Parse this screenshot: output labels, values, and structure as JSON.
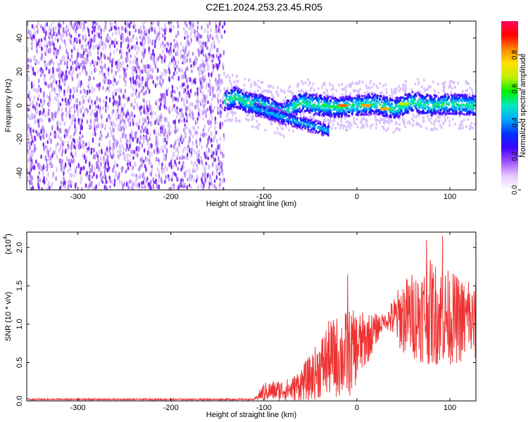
{
  "title": "C2E1.2024.253.23.45.R05",
  "chart_data": [
    {
      "type": "heatmap",
      "title": "C2E1.2024.253.23.45.R05",
      "xlabel": "Height of straight line (km)",
      "ylabel": "Frequency (Hz)",
      "xlim": [
        -355,
        128
      ],
      "ylim": [
        -50,
        50
      ],
      "xticks": [
        -300,
        -200,
        -100,
        0,
        100
      ],
      "yticks": [
        -40,
        -20,
        0,
        20,
        40
      ],
      "colorbar": {
        "label": "Normalized spectral amplitude",
        "range": [
          0,
          1
        ],
        "ticks": [
          "0.0",
          "0.2",
          "0.4",
          "0.6",
          "0.8"
        ],
        "colors": [
          "#ffffff",
          "#e6c8ff",
          "#a050ff",
          "#4000ff",
          "#0030ff",
          "#00aaff",
          "#00e8c0",
          "#00f000",
          "#c0f000",
          "#ffe000",
          "#ff8800",
          "#ff0000",
          "#ff0060"
        ]
      },
      "regions": [
        {
          "name": "noise",
          "x": [
            -355,
            -142
          ],
          "freq_range": [
            -50,
            50
          ],
          "amplitude": 0.05
        },
        {
          "name": "signal_band",
          "x": [
            -142,
            128
          ],
          "center_freq": [
            [
              -142,
              3
            ],
            [
              -130,
              5
            ],
            [
              -120,
              2
            ],
            [
              -100,
              0
            ],
            [
              -80,
              -5
            ],
            [
              -60,
              2
            ],
            [
              -40,
              0
            ],
            [
              -20,
              -1
            ],
            [
              0,
              0
            ],
            [
              20,
              1
            ],
            [
              40,
              -2
            ],
            [
              60,
              2
            ],
            [
              80,
              0
            ],
            [
              100,
              1
            ],
            [
              128,
              0
            ]
          ],
          "half_width_hz": 6
        },
        {
          "name": "branch",
          "x": [
            -110,
            -30
          ],
          "center_freq": [
            [
              -110,
              -2
            ],
            [
              -30,
              -15
            ]
          ],
          "half_width_hz": 4
        }
      ],
      "peaks": [
        {
          "x": -15,
          "freq": 0,
          "amplitude": 1.0
        },
        {
          "x": 10,
          "freq": 0,
          "amplitude": 0.95
        },
        {
          "x": 30,
          "freq": -2,
          "amplitude": 0.95
        },
        {
          "x": 50,
          "freq": 1,
          "amplitude": 0.8
        }
      ]
    },
    {
      "type": "line",
      "xlabel": "Height of straight line (km)",
      "ylabel": "SNR (10 * v/v)",
      "multiplier_label": "(x10",
      "multiplier_exp": "4",
      "xlim": [
        -355,
        128
      ],
      "ylim": [
        0,
        2.2
      ],
      "xticks": [
        -300,
        -200,
        -100,
        0,
        100
      ],
      "yticks": [
        0.0,
        0.5,
        1.0,
        1.5,
        2.0
      ],
      "ytick_labels": [
        "0.0",
        "0.5",
        "1.0",
        "1.5",
        "2.0"
      ],
      "color": "#ee3333",
      "envelope": [
        {
          "x": -355,
          "mean": 0.02,
          "spread": 0.01
        },
        {
          "x": -110,
          "mean": 0.02,
          "spread": 0.01
        },
        {
          "x": -100,
          "mean": 0.12,
          "spread": 0.12
        },
        {
          "x": -70,
          "mean": 0.15,
          "spread": 0.15
        },
        {
          "x": -50,
          "mean": 0.3,
          "spread": 0.3
        },
        {
          "x": -30,
          "mean": 0.55,
          "spread": 0.5
        },
        {
          "x": -10,
          "mean": 0.6,
          "spread": 0.6
        },
        {
          "x": 10,
          "mean": 0.8,
          "spread": 0.35
        },
        {
          "x": 30,
          "mean": 1.05,
          "spread": 0.08
        },
        {
          "x": 50,
          "mean": 1.1,
          "spread": 0.5
        },
        {
          "x": 80,
          "mean": 1.15,
          "spread": 0.7
        },
        {
          "x": 128,
          "mean": 1.0,
          "spread": 0.5
        }
      ],
      "spikes": [
        {
          "x": -10,
          "y": 1.65
        },
        {
          "x": 75,
          "y": 2.1
        },
        {
          "x": 92,
          "y": 2.15
        },
        {
          "x": 120,
          "y": 1.55
        }
      ]
    }
  ]
}
